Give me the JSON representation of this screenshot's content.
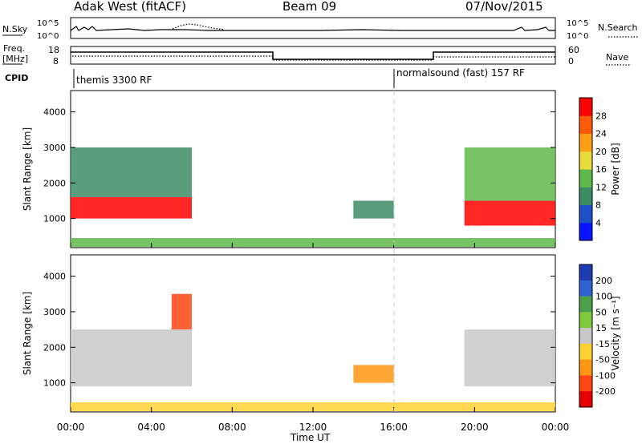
{
  "header": {
    "station": "Adak West (fitACF)",
    "beam": "Beam 09",
    "date": "07/Nov/2015"
  },
  "sky_panel": {
    "left_label": "N.Sky",
    "right_label": "N.Search",
    "left_ticks": [
      "10^5",
      "10^0"
    ],
    "right_ticks": [
      "10^5",
      "10^0"
    ]
  },
  "freq_panel": {
    "left_label_1": "Freq.",
    "left_label_2": "[MHz]",
    "right_label": "Nave",
    "left_ticks": [
      "18",
      "8"
    ],
    "right_ticks": [
      "60",
      "0"
    ]
  },
  "cpid": {
    "label": "CPID",
    "modes": [
      {
        "name": "themis 3300 RF",
        "start_hour": 0
      },
      {
        "name": "normalsound (fast) 157 RF",
        "start_hour": 16
      }
    ]
  },
  "chart_data": [
    {
      "type": "heatmap",
      "title": "",
      "xlabel": "Time UT",
      "ylabel": "Slant Range [km]",
      "xlim": [
        0,
        24
      ],
      "ylim": [
        180,
        4600
      ],
      "x_ticks": [
        "00:00",
        "04:00",
        "08:00",
        "12:00",
        "16:00",
        "20:00",
        "00:00"
      ],
      "y_ticks": [
        "1000",
        "2000",
        "3000",
        "4000"
      ],
      "colorbar": {
        "label": "Power [dB]",
        "ticks": [
          "4",
          "8",
          "12",
          "16",
          "20",
          "24",
          "28"
        ],
        "colors": [
          "#0a14ff",
          "#1e50c8",
          "#3c8c64",
          "#5fb94b",
          "#e6dc3c",
          "#ffa014",
          "#ff5a0a",
          "#ff0000"
        ]
      },
      "regions": [
        {
          "t": [
            0.0,
            6.0
          ],
          "range": [
            1000,
            1600
          ],
          "value": 28
        },
        {
          "t": [
            0.0,
            6.0
          ],
          "range": [
            1600,
            3000
          ],
          "value": 10
        },
        {
          "t": [
            14.0,
            16.0
          ],
          "range": [
            1000,
            1500
          ],
          "value": 10
        },
        {
          "t": [
            19.5,
            24.0
          ],
          "range": [
            800,
            1500
          ],
          "value": 28
        },
        {
          "t": [
            19.5,
            24.0
          ],
          "range": [
            1500,
            3000
          ],
          "value": 14
        },
        {
          "t": [
            0.0,
            24.0
          ],
          "range": [
            200,
            450
          ],
          "value": 12
        }
      ]
    },
    {
      "type": "heatmap",
      "title": "",
      "xlabel": "Time UT",
      "ylabel": "Slant Range [km]",
      "xlim": [
        0,
        24
      ],
      "ylim": [
        180,
        4600
      ],
      "x_ticks": [
        "00:00",
        "04:00",
        "08:00",
        "12:00",
        "16:00",
        "20:00",
        "00:00"
      ],
      "y_ticks": [
        "1000",
        "2000",
        "3000",
        "4000"
      ],
      "colorbar": {
        "label": "Velocity [m s⁻¹]",
        "ticks": [
          "200",
          "100",
          "50",
          "15",
          "-15",
          "-50",
          "-100",
          "-200"
        ],
        "colors": [
          "#1e3cb4",
          "#2d64d2",
          "#4ba04b",
          "#82c83c",
          "#c8c8c8",
          "#ffd232",
          "#ff9614",
          "#ff4614",
          "#e60000"
        ]
      },
      "regions": [
        {
          "t": [
            0.0,
            6.0
          ],
          "range": [
            900,
            2500
          ],
          "value": 0
        },
        {
          "t": [
            5.0,
            6.0
          ],
          "range": [
            2500,
            3500
          ],
          "value": -200
        },
        {
          "t": [
            14.0,
            16.0
          ],
          "range": [
            1000,
            1500
          ],
          "value": -80
        },
        {
          "t": [
            19.5,
            24.0
          ],
          "range": [
            900,
            2500
          ],
          "value": 0
        },
        {
          "t": [
            0.0,
            24.0
          ],
          "range": [
            200,
            450
          ],
          "value": -30
        }
      ]
    }
  ]
}
